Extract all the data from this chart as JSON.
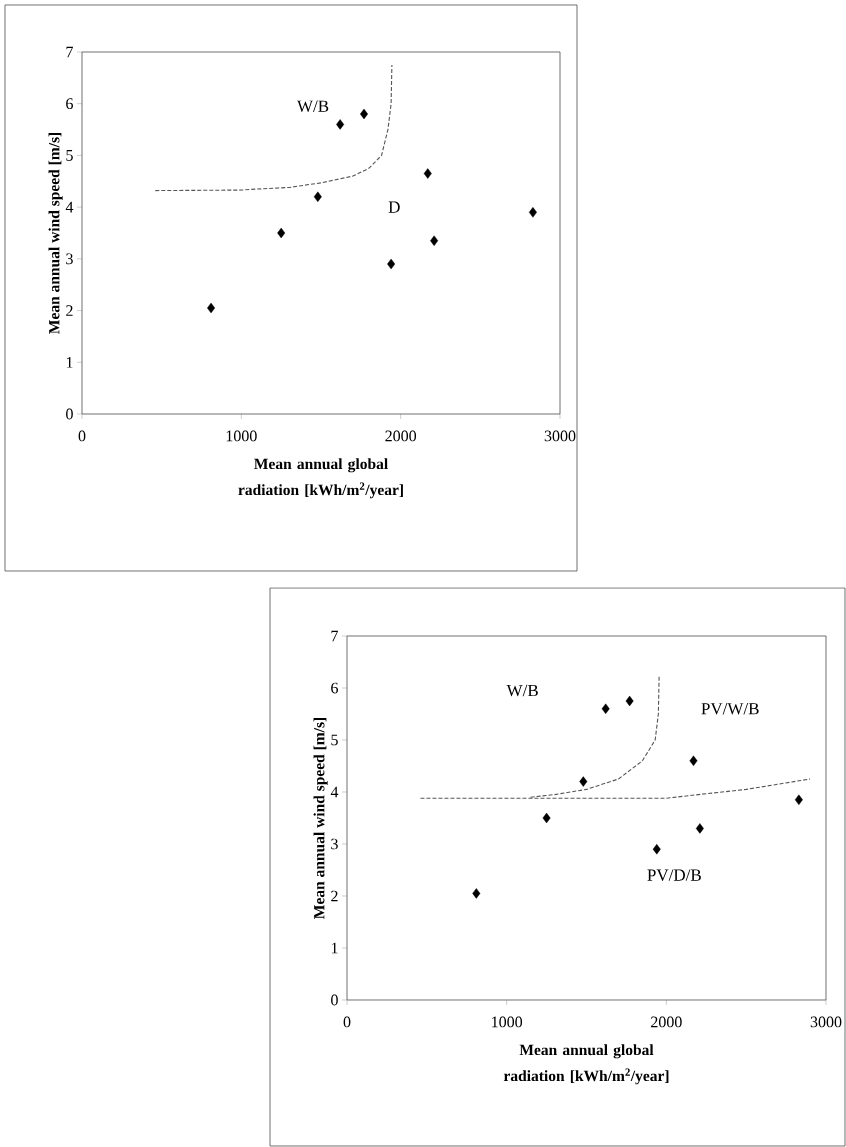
{
  "chart_data": [
    {
      "type": "scatter",
      "xlabel": "Mean annual global radiation [kWh/m$^{2}$/year]",
      "ylabel": "Mean annual wind speed [m/s]",
      "xlim": [
        0,
        3000
      ],
      "ylim": [
        0,
        7
      ],
      "xticks": [
        0,
        1000,
        2000,
        3000
      ],
      "yticks": [
        0,
        1,
        2,
        3,
        4,
        5,
        6,
        7
      ],
      "grid": false,
      "annotations": [
        "W/B",
        "D"
      ],
      "series": [
        {
          "type": "scatter",
          "marker": "diamond",
          "color": "#000000",
          "x": [
            810,
            1250,
            1480,
            1620,
            1770,
            1940,
            2170,
            2210,
            2830
          ],
          "values": [
            2.05,
            3.5,
            4.2,
            5.6,
            5.8,
            2.9,
            4.65,
            3.35,
            3.9
          ]
        },
        {
          "type": "line",
          "line_style": "dashed",
          "marker": "none",
          "color": "#555555",
          "x": [
            460,
            1000,
            1100,
            1300,
            1500,
            1700,
            1800,
            1880,
            1920,
            1940,
            1945
          ],
          "values": [
            4.32,
            4.33,
            4.35,
            4.38,
            4.47,
            4.6,
            4.75,
            5.0,
            5.5,
            6.0,
            6.75
          ]
        }
      ]
    },
    {
      "type": "scatter",
      "xlabel": "Mean annual global radiation [kWh/m$^{2}$/year]",
      "ylabel": "Mean annual wind speed [m/s]",
      "xlim": [
        0,
        3000
      ],
      "ylim": [
        0,
        7
      ],
      "xticks": [
        0,
        1000,
        2000,
        3000
      ],
      "yticks": [
        0,
        1,
        2,
        3,
        4,
        5,
        6,
        7
      ],
      "grid": false,
      "annotations": [
        "W/B",
        "PV/W/B",
        "PV/D/B"
      ],
      "series": [
        {
          "type": "scatter",
          "marker": "diamond",
          "color": "#000000",
          "x": [
            810,
            1250,
            1480,
            1620,
            1770,
            1940,
            2170,
            2210,
            2830
          ],
          "values": [
            2.05,
            3.5,
            4.2,
            5.6,
            5.75,
            2.9,
            4.6,
            3.3,
            3.85
          ]
        },
        {
          "type": "line",
          "line_style": "dashed",
          "marker": "none",
          "color": "#555555",
          "x": [
            1150,
            1300,
            1500,
            1700,
            1850,
            1930,
            1950,
            1955
          ],
          "values": [
            3.9,
            3.95,
            4.05,
            4.25,
            4.6,
            5.0,
            5.5,
            6.25
          ]
        },
        {
          "type": "line",
          "line_style": "dashed",
          "marker": "none",
          "color": "#555555",
          "x": [
            460,
            1000,
            1500,
            2000,
            2200,
            2500,
            2800,
            2900
          ],
          "values": [
            3.88,
            3.88,
            3.88,
            3.88,
            3.95,
            4.05,
            4.2,
            4.25
          ]
        }
      ]
    }
  ]
}
